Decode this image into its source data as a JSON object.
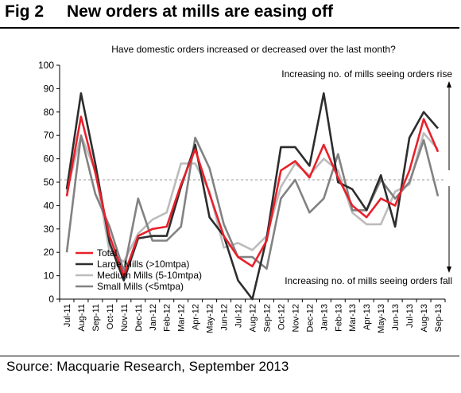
{
  "figure": {
    "number": "Fig 2",
    "title": "New orders at mills are easing off",
    "source": "Source: Macquarie Research, September 2013"
  },
  "chart_data": {
    "type": "line",
    "title": "Have domestic orders increased or decreased over the last month?",
    "categories": [
      "Jul-11",
      "Aug-11",
      "Sep-11",
      "Oct-11",
      "Nov-11",
      "Dec-11",
      "Jan-12",
      "Feb-12",
      "Mar-12",
      "Apr-12",
      "May-12",
      "Jun-12",
      "Jul-12",
      "Aug-12",
      "Sep-12",
      "Oct-12",
      "Nov-12",
      "Dec-12",
      "Jan-13",
      "Feb-13",
      "Mar-13",
      "Apr-13",
      "May-13",
      "Jun-13",
      "Jul-13",
      "Aug-13",
      "Sep-13"
    ],
    "ylim": [
      0,
      100
    ],
    "yticks": [
      0,
      10,
      20,
      30,
      40,
      50,
      60,
      70,
      80,
      90,
      100
    ],
    "reference_line": 51,
    "series": [
      {
        "name": "Total",
        "color": "#e8212b",
        "values": [
          44,
          78,
          54,
          27,
          10,
          27,
          30,
          31,
          49,
          64,
          45,
          27,
          18,
          14,
          25,
          55,
          59,
          52,
          66,
          52,
          40,
          35,
          43,
          40,
          55,
          77,
          63
        ]
      },
      {
        "name": "Large Mills (>10mtpa)",
        "color": "#2d2d2d",
        "values": [
          47,
          88,
          58,
          24,
          8,
          26,
          27,
          27,
          48,
          66,
          35,
          27,
          8,
          0,
          26,
          65,
          65,
          57,
          88,
          50,
          47,
          38,
          53,
          31,
          69,
          80,
          73
        ]
      },
      {
        "name": "Medium Mills (5-10mtpa)",
        "color": "#bcbcbc",
        "values": [
          46,
          70,
          55,
          20,
          16,
          28,
          34,
          37,
          58,
          58,
          46,
          22,
          24,
          21,
          27,
          48,
          58,
          53,
          60,
          55,
          37,
          32,
          32,
          46,
          49,
          71,
          64
        ]
      },
      {
        "name": "Small Mills (<5mtpa)",
        "color": "#828282",
        "values": [
          20,
          70,
          45,
          31,
          12,
          43,
          25,
          25,
          31,
          69,
          56,
          32,
          18,
          18,
          13,
          43,
          51,
          37,
          43,
          62,
          38,
          38,
          51,
          43,
          50,
          68,
          44
        ]
      }
    ],
    "annotations": {
      "upper": "Increasing no. of mills seeing orders rise",
      "lower": "Increasing no. of mills seeing orders fall"
    },
    "legend_position": "bottom-left"
  }
}
